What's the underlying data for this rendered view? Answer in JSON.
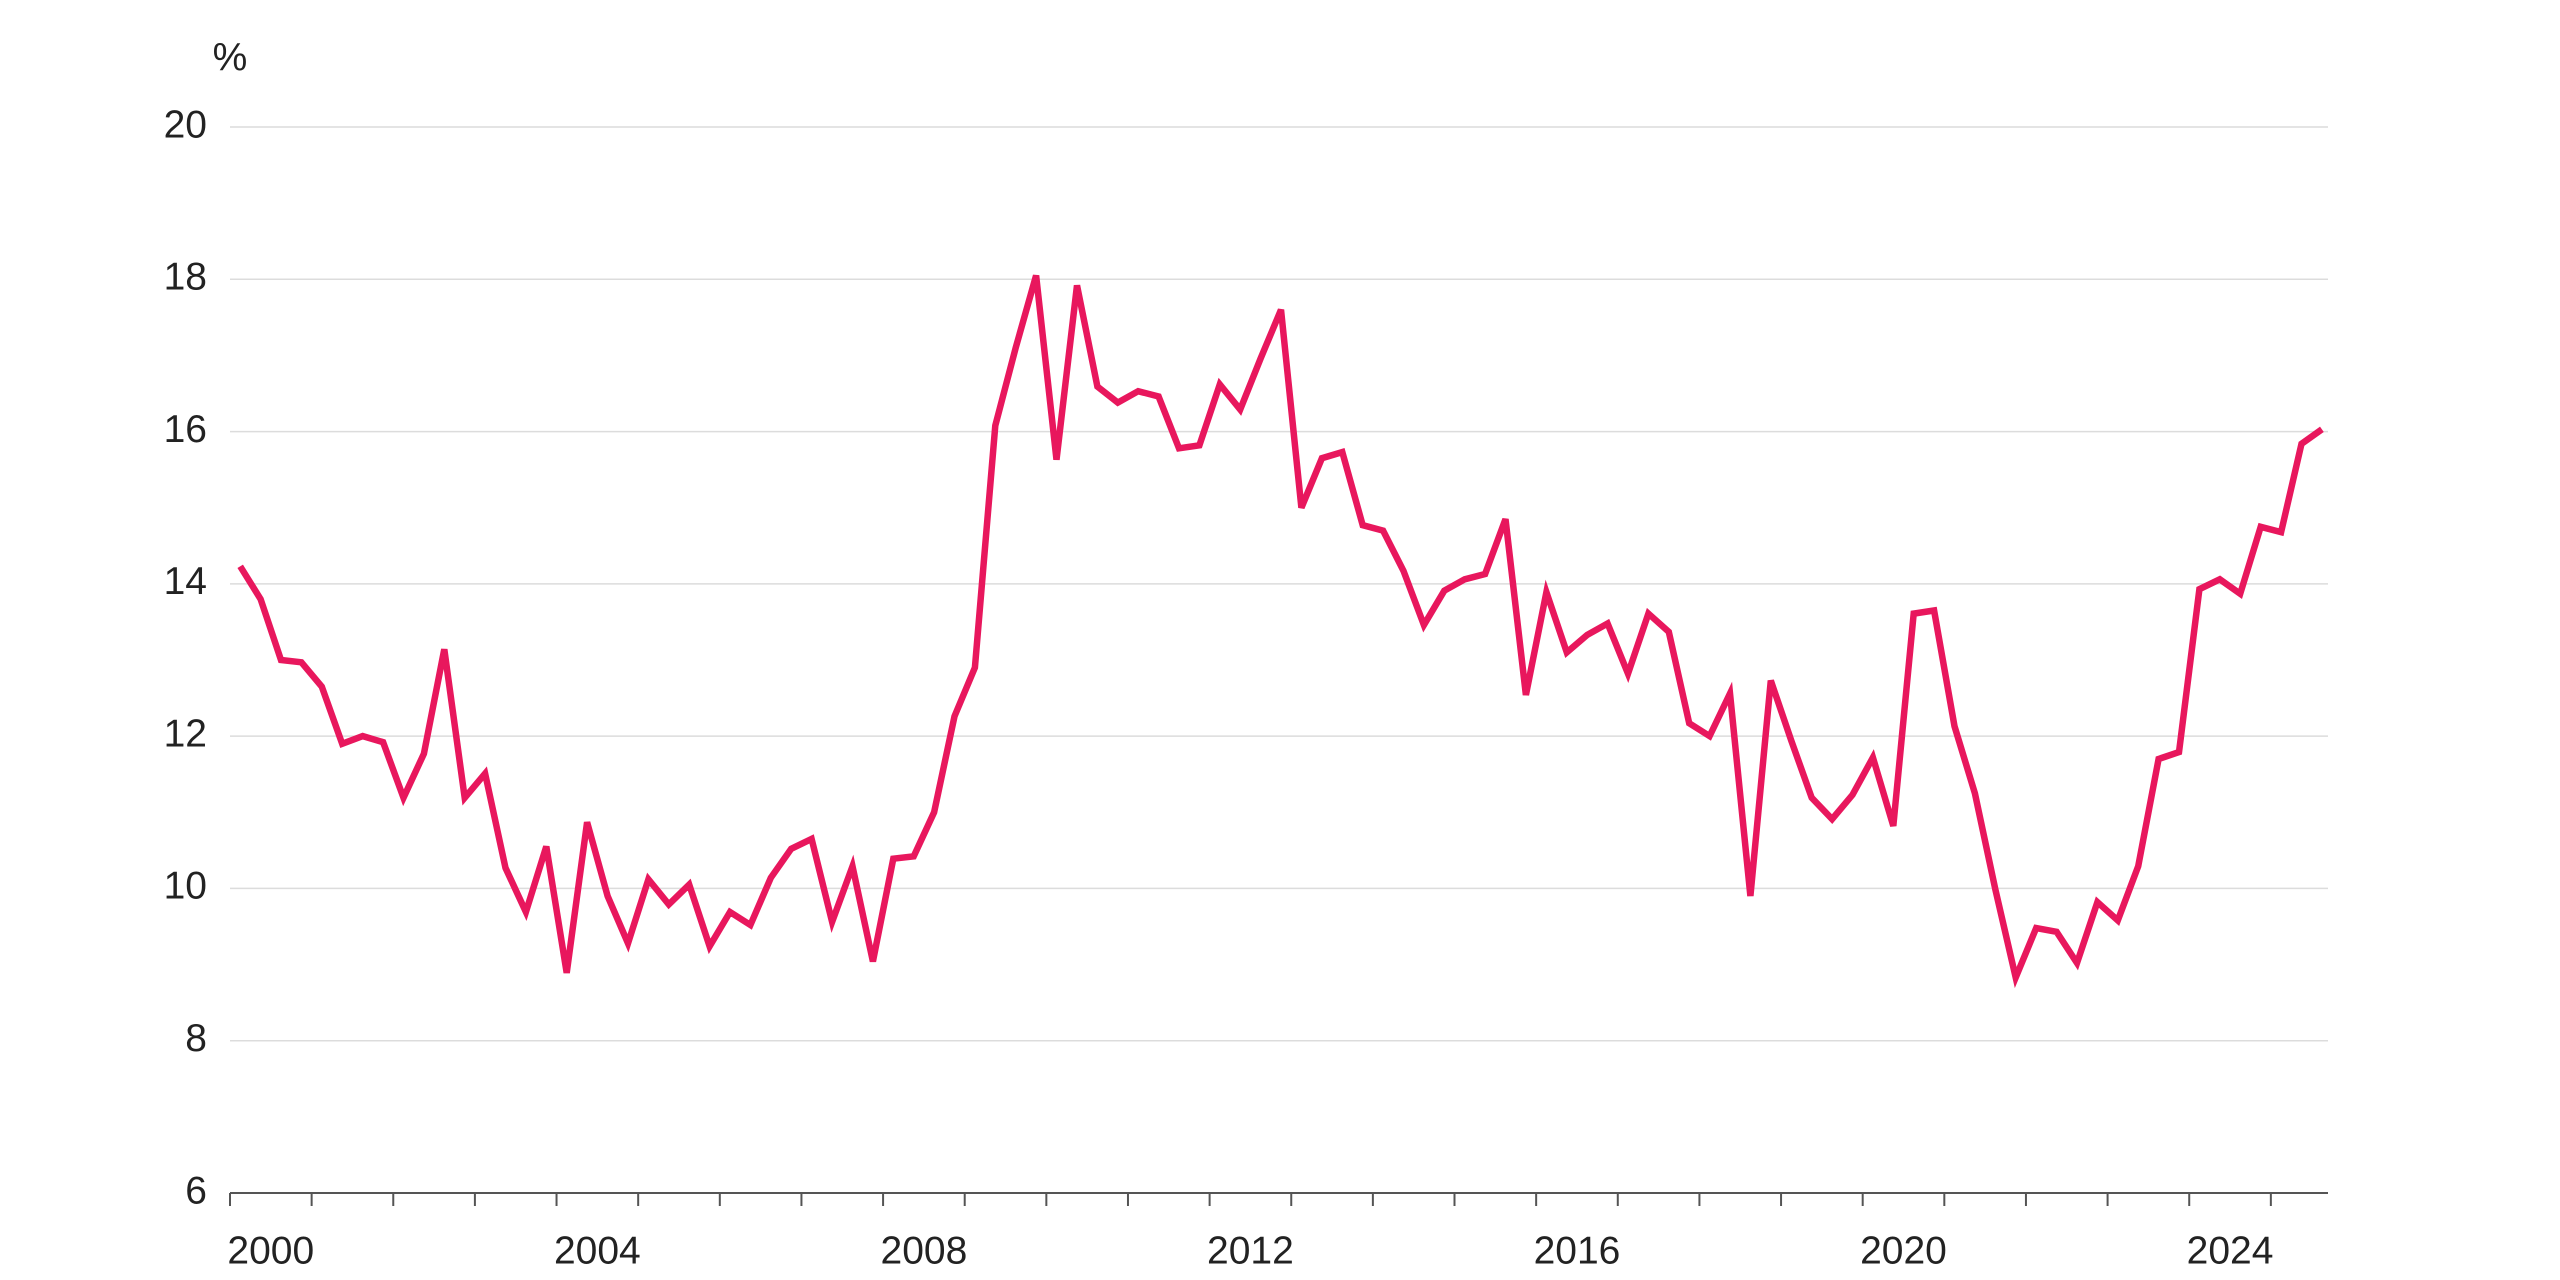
{
  "chart_data": {
    "type": "line",
    "y_label": "%",
    "x": [
      2000.125,
      2000.375,
      2000.625,
      2000.875,
      2001.125,
      2001.375,
      2001.625,
      2001.875,
      2002.125,
      2002.375,
      2002.625,
      2002.875,
      2003.125,
      2003.375,
      2003.625,
      2003.875,
      2004.125,
      2004.375,
      2004.625,
      2004.875,
      2005.125,
      2005.375,
      2005.625,
      2005.875,
      2006.125,
      2006.375,
      2006.625,
      2006.875,
      2007.125,
      2007.375,
      2007.625,
      2007.875,
      2008.125,
      2008.375,
      2008.625,
      2008.875,
      2009.125,
      2009.375,
      2009.625,
      2009.875,
      2010.125,
      2010.375,
      2010.625,
      2010.875,
      2011.125,
      2011.375,
      2011.625,
      2011.875,
      2012.125,
      2012.375,
      2012.625,
      2012.875,
      2013.125,
      2013.375,
      2013.625,
      2013.875,
      2014.125,
      2014.375,
      2014.625,
      2014.875,
      2015.125,
      2015.375,
      2015.625,
      2015.875,
      2016.125,
      2016.375,
      2016.625,
      2016.875,
      2017.125,
      2017.375,
      2017.625,
      2017.875,
      2018.125,
      2018.375,
      2018.625,
      2018.875,
      2019.125,
      2019.375,
      2019.625,
      2019.875,
      2020.125,
      2020.375,
      2020.625,
      2020.875,
      2021.125,
      2021.375,
      2021.625,
      2021.875,
      2022.125,
      2022.375,
      2022.625,
      2022.875,
      2023.125,
      2023.375,
      2023.625,
      2023.875,
      2024.125,
      2024.375,
      2024.625,
      2024.875,
      2025.125,
      2025.375,
      2025.625
    ],
    "series": [
      {
        "color": "#e8175d",
        "values": [
          14.23,
          13.8,
          13.0,
          12.97,
          12.65,
          11.9,
          12.0,
          11.92,
          11.19,
          11.77,
          13.14,
          11.19,
          11.51,
          10.27,
          9.69,
          10.55,
          8.89,
          10.87,
          9.9,
          9.28,
          10.12,
          9.79,
          10.05,
          9.24,
          9.69,
          9.52,
          10.14,
          10.52,
          10.65,
          9.56,
          10.29,
          9.04,
          10.39,
          10.42,
          11.0,
          12.26,
          12.9,
          16.08,
          17.1,
          18.05,
          15.63,
          17.92,
          16.59,
          16.38,
          16.53,
          16.46,
          15.78,
          15.82,
          16.62,
          16.29,
          16.96,
          17.6,
          15.0,
          15.65,
          15.73,
          14.77,
          14.7,
          14.17,
          13.46,
          13.91,
          14.06,
          14.13,
          14.85,
          12.54,
          13.89,
          13.1,
          13.33,
          13.48,
          12.82,
          13.61,
          13.37,
          12.17,
          12.0,
          12.56,
          9.9,
          12.73,
          11.94,
          11.19,
          10.91,
          11.23,
          11.72,
          10.82,
          13.61,
          13.65,
          12.13,
          11.25,
          9.99,
          8.83,
          9.48,
          9.43,
          9.02,
          9.82,
          9.58,
          10.29,
          11.7,
          11.79,
          13.93,
          14.06,
          13.87,
          14.75,
          14.68,
          15.84,
          16.03
        ]
      }
    ],
    "xlim": [
      2000,
      2025.7
    ],
    "xticks": [
      {
        "value": 2000.5,
        "label": "2000"
      },
      {
        "value": 2004.5,
        "label": "2004"
      },
      {
        "value": 2008.5,
        "label": "2008"
      },
      {
        "value": 2012.5,
        "label": "2012"
      },
      {
        "value": 2016.5,
        "label": "2016"
      },
      {
        "value": 2020.5,
        "label": "2020"
      },
      {
        "value": 2024.5,
        "label": "2024"
      }
    ],
    "ylim": [
      6,
      20
    ],
    "yticks": [
      6,
      8,
      10,
      12,
      14,
      16,
      18,
      20
    ],
    "grid": true
  }
}
